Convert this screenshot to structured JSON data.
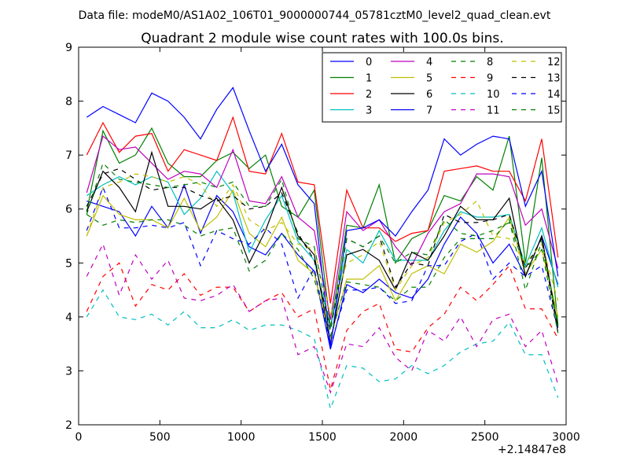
{
  "chart_data": {
    "type": "line",
    "suptitle": "Data file: modeM0/AS1A02_106T01_9000000744_05781cztM0_level2_quad_clean.evt",
    "title": "Quadrant 2 module wise count rates with 100.0s bins.",
    "xlabel": "",
    "ylabel": "",
    "x_offset_label": "+2.14847e8",
    "xlim": [
      0,
      3000
    ],
    "ylim": [
      2,
      9
    ],
    "xticks": [
      0,
      500,
      1000,
      1500,
      2000,
      2500,
      3000
    ],
    "xtick_labels": [
      "0",
      "500",
      "1000",
      "1500",
      "2000",
      "2500",
      "3000"
    ],
    "yticks": [
      2,
      3,
      4,
      5,
      6,
      7,
      8,
      9
    ],
    "ytick_labels": [
      "2",
      "3",
      "4",
      "5",
      "6",
      "7",
      "8",
      "9"
    ],
    "grid": false,
    "legend_position": "top-right",
    "legend_columns": 4,
    "x": [
      50,
      150,
      250,
      350,
      450,
      550,
      650,
      750,
      850,
      950,
      1050,
      1150,
      1250,
      1350,
      1450,
      1550,
      1650,
      1750,
      1850,
      1950,
      2050,
      2150,
      2250,
      2350,
      2450,
      2550,
      2650,
      2750,
      2850,
      2950
    ],
    "series": [
      {
        "name": "0",
        "color": "#0000ff",
        "dash": "solid",
        "values": [
          6.15,
          6.05,
          5.95,
          5.5,
          6.05,
          5.65,
          6.45,
          5.55,
          6.25,
          5.95,
          5.3,
          5.15,
          5.55,
          5.15,
          4.85,
          3.4,
          4.6,
          4.45,
          4.7,
          4.45,
          4.35,
          4.7,
          5.35,
          5.85,
          5.55,
          5.0,
          5.35,
          4.75,
          5.5,
          4.6
        ]
      },
      {
        "name": "1",
        "color": "#008000",
        "dash": "solid",
        "values": [
          5.95,
          7.45,
          6.85,
          7.0,
          7.5,
          6.85,
          6.6,
          6.6,
          6.9,
          7.05,
          6.75,
          7.0,
          6.05,
          5.85,
          6.35,
          3.8,
          5.7,
          5.65,
          6.45,
          5.0,
          5.45,
          5.6,
          6.25,
          6.15,
          6.6,
          6.35,
          7.35,
          5.0,
          6.95,
          3.85
        ]
      },
      {
        "name": "2",
        "color": "#ff0000",
        "dash": "solid",
        "values": [
          7.0,
          7.6,
          7.05,
          7.35,
          7.4,
          6.7,
          7.1,
          7.0,
          6.9,
          7.7,
          6.7,
          6.65,
          7.4,
          6.5,
          6.45,
          4.25,
          6.35,
          5.65,
          5.65,
          5.4,
          5.55,
          5.6,
          6.7,
          6.75,
          6.8,
          6.7,
          6.7,
          6.15,
          7.3,
          5.1
        ]
      },
      {
        "name": "3",
        "color": "#00bfbf",
        "dash": "solid",
        "values": [
          6.25,
          6.45,
          6.6,
          6.45,
          6.6,
          6.5,
          5.9,
          6.2,
          6.7,
          6.3,
          5.2,
          5.8,
          6.25,
          5.4,
          5.05,
          3.8,
          5.25,
          5.0,
          5.6,
          5.05,
          5.05,
          5.05,
          5.6,
          5.95,
          5.85,
          5.85,
          5.9,
          4.95,
          5.65,
          4.55
        ]
      },
      {
        "name": "4",
        "color": "#bf00bf",
        "dash": "solid",
        "values": [
          6.3,
          7.35,
          7.1,
          7.15,
          6.85,
          6.55,
          6.7,
          6.65,
          6.4,
          7.1,
          6.15,
          6.1,
          6.6,
          5.85,
          5.6,
          3.95,
          5.95,
          5.6,
          5.8,
          5.3,
          4.95,
          5.55,
          5.95,
          6.1,
          6.65,
          6.65,
          6.6,
          5.7,
          6.0,
          4.9
        ]
      },
      {
        "name": "5",
        "color": "#bfbf00",
        "dash": "solid",
        "values": [
          5.5,
          6.25,
          5.9,
          5.8,
          5.8,
          5.65,
          6.2,
          5.6,
          5.85,
          6.35,
          5.55,
          5.3,
          5.85,
          5.05,
          4.8,
          3.6,
          4.7,
          4.7,
          4.95,
          4.3,
          4.8,
          4.95,
          4.8,
          5.35,
          5.2,
          5.4,
          5.85,
          4.8,
          5.25,
          4.0
        ]
      },
      {
        "name": "6",
        "color": "#000000",
        "dash": "solid",
        "values": [
          5.95,
          6.7,
          6.4,
          5.95,
          7.05,
          6.05,
          6.05,
          6.0,
          6.2,
          5.8,
          5.0,
          5.6,
          6.4,
          5.5,
          5.15,
          3.5,
          5.15,
          5.25,
          5.05,
          4.5,
          5.2,
          5.05,
          5.5,
          6.05,
          5.8,
          5.8,
          6.2,
          4.75,
          5.5,
          3.8
        ]
      },
      {
        "name": "7",
        "color": "#0000ff",
        "dash": "solid",
        "values": [
          7.7,
          7.9,
          7.75,
          7.6,
          8.15,
          8.0,
          7.7,
          7.3,
          7.85,
          8.25,
          7.45,
          6.7,
          7.2,
          6.45,
          6.1,
          3.45,
          5.6,
          5.65,
          5.8,
          5.5,
          5.95,
          6.35,
          7.3,
          7.0,
          7.2,
          7.35,
          7.3,
          6.05,
          6.7,
          4.75
        ]
      },
      {
        "name": "8",
        "color": "#008000",
        "dash": "dashed",
        "values": [
          5.9,
          5.7,
          5.8,
          5.75,
          5.8,
          5.8,
          5.7,
          5.5,
          5.6,
          5.65,
          4.85,
          5.05,
          5.55,
          5.25,
          4.7,
          3.65,
          4.65,
          4.6,
          4.55,
          4.3,
          4.55,
          4.55,
          5.1,
          5.45,
          5.45,
          5.45,
          5.8,
          4.5,
          5.4,
          3.85
        ]
      },
      {
        "name": "9",
        "color": "#ff0000",
        "dash": "dashed",
        "values": [
          4.1,
          4.75,
          5.0,
          4.2,
          4.6,
          4.5,
          4.8,
          4.4,
          4.55,
          4.55,
          4.1,
          4.3,
          4.45,
          4.0,
          4.15,
          2.65,
          3.75,
          4.1,
          4.25,
          3.4,
          3.35,
          3.8,
          4.05,
          4.55,
          4.3,
          4.6,
          4.95,
          4.15,
          4.15,
          3.6
        ]
      },
      {
        "name": "10",
        "color": "#00bfbf",
        "dash": "dashed",
        "values": [
          4.0,
          4.5,
          4.0,
          3.95,
          4.05,
          3.85,
          4.1,
          3.8,
          3.8,
          3.95,
          3.75,
          3.85,
          3.85,
          3.75,
          3.6,
          2.3,
          3.1,
          3.05,
          2.8,
          2.85,
          3.1,
          2.95,
          3.1,
          3.35,
          3.5,
          3.55,
          3.9,
          3.3,
          3.3,
          2.5
        ]
      },
      {
        "name": "11",
        "color": "#bf00bf",
        "dash": "dashed",
        "values": [
          4.75,
          5.35,
          4.4,
          5.15,
          4.7,
          5.05,
          4.35,
          4.3,
          4.4,
          4.6,
          4.1,
          4.3,
          4.35,
          3.3,
          3.45,
          2.6,
          3.5,
          3.45,
          3.8,
          3.25,
          3.0,
          3.75,
          3.55,
          4.0,
          3.45,
          3.95,
          4.05,
          3.45,
          3.75,
          2.75
        ]
      },
      {
        "name": "12",
        "color": "#bfbf00",
        "dash": "dashed",
        "values": [
          5.5,
          6.4,
          6.5,
          6.65,
          6.6,
          6.5,
          6.6,
          6.45,
          6.05,
          6.45,
          5.8,
          5.6,
          5.75,
          5.35,
          5.25,
          4.05,
          5.0,
          5.15,
          5.4,
          4.5,
          4.95,
          5.1,
          5.75,
          5.9,
          6.15,
          5.5,
          5.45,
          5.0,
          5.35,
          4.3
        ]
      },
      {
        "name": "13",
        "color": "#000000",
        "dash": "dashed",
        "values": [
          6.05,
          6.65,
          6.75,
          6.55,
          6.35,
          6.4,
          6.4,
          6.25,
          6.15,
          6.25,
          6.0,
          6.05,
          6.3,
          5.55,
          5.05,
          3.75,
          5.45,
          5.3,
          5.5,
          4.55,
          5.0,
          4.95,
          5.9,
          5.75,
          5.75,
          5.8,
          5.9,
          4.9,
          5.45,
          3.7
        ]
      },
      {
        "name": "14",
        "color": "#0000ff",
        "dash": "dashed",
        "values": [
          5.6,
          6.4,
          5.65,
          5.65,
          5.7,
          5.65,
          5.75,
          4.95,
          5.6,
          5.45,
          5.35,
          5.65,
          5.35,
          4.35,
          4.9,
          3.45,
          4.5,
          4.5,
          4.55,
          4.25,
          4.3,
          4.95,
          4.95,
          5.4,
          5.55,
          4.7,
          5.0,
          4.75,
          4.95,
          3.75
        ]
      },
      {
        "name": "15",
        "color": "#008000",
        "dash": "dashed",
        "values": [
          5.9,
          6.85,
          6.55,
          6.5,
          6.45,
          6.4,
          6.45,
          6.5,
          6.4,
          6.5,
          6.05,
          6.05,
          6.55,
          5.45,
          5.3,
          3.8,
          5.45,
          5.3,
          5.5,
          5.0,
          5.2,
          5.15,
          5.8,
          5.55,
          5.5,
          5.6,
          5.75,
          4.9,
          5.25,
          3.7
        ]
      }
    ]
  }
}
